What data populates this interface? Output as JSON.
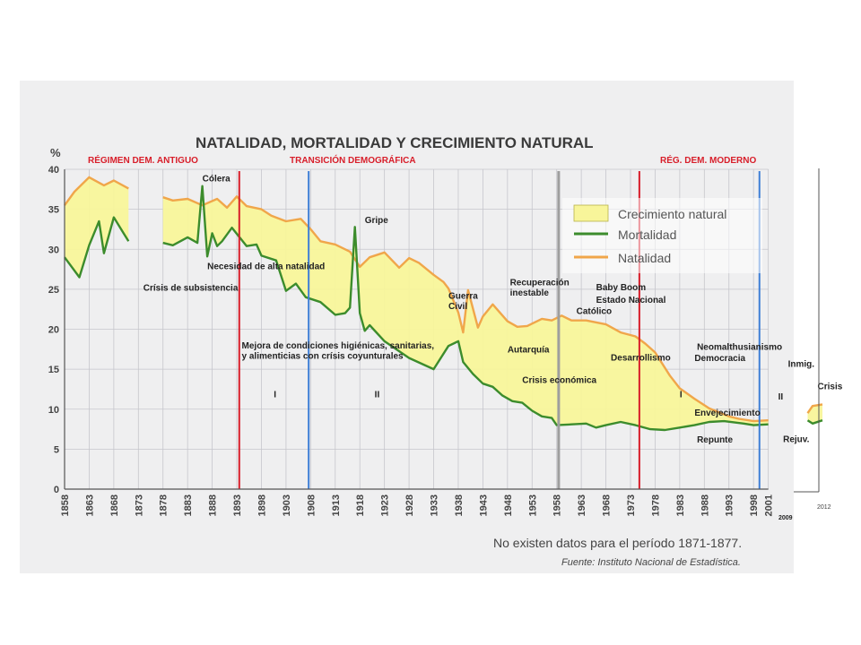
{
  "chart_data": {
    "type": "area",
    "title": "NATALIDAD, MORTALIDAD Y CRECIMIENTO NATURAL",
    "ylabel": "%",
    "xlabel": "",
    "ylim": [
      0,
      40
    ],
    "xlim": [
      1858,
      2012
    ],
    "y_ticks": [
      "0",
      "5",
      "10",
      "15",
      "20",
      "25",
      "30",
      "35",
      "40"
    ],
    "x_ticks": [
      "1858",
      "1863",
      "1868",
      "1873",
      "1878",
      "1883",
      "1888",
      "1893",
      "1898",
      "1903",
      "1908",
      "1913",
      "1918",
      "1923",
      "1928",
      "1933",
      "1938",
      "1943",
      "1948",
      "1953",
      "1958",
      "1963",
      "1968",
      "1973",
      "1978",
      "1983",
      "1988",
      "1993",
      "1998",
      "2001"
    ],
    "grid": true,
    "legend_position": "top-right",
    "legend": [
      "Crecimiento natural",
      "Mortalidad",
      "Natalidad"
    ],
    "colors": {
      "natalidad": "#f0a64a",
      "mortalidad": "#3c8c2c",
      "crecimiento": "#f8f59a",
      "phase_red": "#d81e2a",
      "phase_blue": "#3f7fd6",
      "gap_gray": "#9e9e9e"
    },
    "series": [
      {
        "name": "Natalidad",
        "segments": [
          {
            "x": [
              1858,
              1860,
              1863,
              1866,
              1868,
              1871
            ],
            "y": [
              35.5,
              37.2,
              39.0,
              38.0,
              38.6,
              37.6
            ]
          },
          {
            "x": [
              1878,
              1880,
              1883,
              1886,
              1889,
              1891,
              1893,
              1895,
              1898,
              1900,
              1903,
              1906,
              1908,
              1910,
              1913,
              1916,
              1918,
              1920,
              1923,
              1926,
              1928,
              1930,
              1933,
              1935,
              1936,
              1938,
              1939,
              1940,
              1942,
              1943,
              1945,
              1948,
              1950,
              1952,
              1955,
              1957,
              1959,
              1961,
              1964,
              1968,
              1971,
              1974,
              1976,
              1978,
              1981,
              1983,
              1986,
              1989,
              1991,
              1993,
              1995,
              1998,
              2001
            ]
          },
          {
            "x": [
              2009,
              2010,
              2012
            ],
            "y": [
              9.5,
              10.4,
              10.6
            ]
          }
        ],
        "y": [
          36.5,
          36.1,
          36.3,
          35.5,
          36.3,
          35.2,
          36.6,
          35.4,
          35.0,
          34.2,
          33.5,
          33.8,
          32.5,
          31.0,
          30.6,
          29.7,
          27.8,
          29.0,
          29.6,
          27.7,
          28.9,
          28.3,
          26.8,
          25.9,
          25.1,
          22.1,
          19.6,
          24.9,
          20.2,
          21.6,
          23.1,
          21.0,
          20.3,
          20.4,
          21.3,
          21.1,
          21.7,
          21.1,
          21.1,
          20.6,
          19.6,
          19.1,
          18.2,
          17.1,
          14.2,
          12.6,
          11.3,
          10.1,
          9.6,
          9.1,
          8.8,
          8.5,
          8.6
        ]
      },
      {
        "name": "Mortalidad",
        "segments": [
          {
            "x": [
              1858,
              1861,
              1863,
              1865,
              1866,
              1868,
              1870,
              1871
            ],
            "y": [
              29.0,
              26.5,
              30.5,
              33.5,
              29.5,
              34.0,
              32.0,
              31.0
            ]
          },
          {
            "x": [
              1878,
              1880,
              1883,
              1885,
              1886,
              1887,
              1888,
              1889,
              1890,
              1892,
              1895,
              1897,
              1898,
              1901,
              1903,
              1905,
              1907,
              1910,
              1913,
              1915,
              1916,
              1917,
              1918,
              1919,
              1920,
              1923,
              1928,
              1933,
              1936,
              1938,
              1939,
              1941,
              1943,
              1945,
              1947,
              1949,
              1951,
              1953,
              1955,
              1957,
              1958,
              1961,
              1964,
              1966,
              1968,
              1971,
              1974,
              1977,
              1980,
              1983,
              1986,
              1989,
              1992,
              1996,
              1998,
              2001
            ]
          },
          {
            "x": [
              2009,
              2010,
              2012
            ],
            "y": [
              8.6,
              8.2,
              8.6
            ]
          }
        ],
        "y": [
          30.8,
          30.5,
          31.5,
          30.8,
          37.9,
          29.1,
          32.0,
          30.4,
          31.0,
          32.7,
          30.4,
          30.6,
          29.2,
          28.6,
          24.8,
          25.7,
          24.0,
          23.4,
          21.8,
          22.0,
          22.7,
          32.8,
          22.0,
          19.8,
          20.5,
          18.5,
          16.4,
          15.0,
          17.9,
          18.5,
          15.9,
          14.4,
          13.2,
          12.8,
          11.7,
          11.0,
          10.8,
          9.8,
          9.1,
          8.9,
          8.0,
          8.1,
          8.2,
          7.7,
          8.0,
          8.4,
          8.0,
          7.5,
          7.4,
          7.7,
          8.0,
          8.4,
          8.5,
          8.2,
          8.0,
          8.1
        ]
      }
    ],
    "phases": [
      "RÉGIMEN DEM. ANTIGUO",
      "TRANSICIÓN DEMOGRÁFICA",
      "RÉG. DEM. MODERNO"
    ],
    "phase_lines": [
      {
        "x": 1893.5,
        "color": "phase_red"
      },
      {
        "x": 1907.6,
        "color": "phase_blue"
      },
      {
        "x": 1958.4,
        "color": "gap_gray"
      },
      {
        "x": 1974.8,
        "color": "phase_red"
      },
      {
        "x": 1999.2,
        "color": "phase_blue"
      }
    ],
    "annotations": [
      {
        "text": "Cólera",
        "x": 1886,
        "y": 38.5
      },
      {
        "text": "Gripe",
        "x": 1919,
        "y": 33.3
      },
      {
        "text": "Necesidad de alta natalidad",
        "x": 1887,
        "y": 27.5
      },
      {
        "text": "Crísis de subsistencia",
        "x": 1874,
        "y": 24.8
      },
      {
        "text": "Recuperación",
        "x": 1948.5,
        "y": 25.5
      },
      {
        "text": "inestable",
        "x": 1948.5,
        "y": 24.2
      },
      {
        "text": "Guerra",
        "x": 1936,
        "y": 23.8
      },
      {
        "text": "Civil",
        "x": 1936,
        "y": 22.5
      },
      {
        "text": "Baby Boom",
        "x": 1966,
        "y": 24.9
      },
      {
        "text": "Estado Nacional",
        "x": 1966,
        "y": 23.3
      },
      {
        "text": "Católico",
        "x": 1962,
        "y": 21.9
      },
      {
        "text": "Mejora de condiciones higiénicas, sanitarias,",
        "x": 1894,
        "y": 17.6
      },
      {
        "text": "y alimenticias con crísis coyunturales",
        "x": 1894,
        "y": 16.3
      },
      {
        "text": "Autarquía",
        "x": 1948,
        "y": 17.1
      },
      {
        "text": "Desarrollismo",
        "x": 1969,
        "y": 16.1
      },
      {
        "text": "Neomalthusianismo",
        "x": 1986.5,
        "y": 17.4
      },
      {
        "text": "Democracia",
        "x": 1986,
        "y": 16.0
      },
      {
        "text": "Inmig.",
        "x": 2005,
        "y": 15.3
      },
      {
        "text": "Crisis económica",
        "x": 1951,
        "y": 13.3
      },
      {
        "text": "I",
        "x": 1900.5,
        "y": 11.5
      },
      {
        "text": "II",
        "x": 1921,
        "y": 11.5
      },
      {
        "text": "I",
        "x": 1983,
        "y": 11.5
      },
      {
        "text": "II",
        "x": 2003,
        "y": 11.2
      },
      {
        "text": "Crisis",
        "x": 2011,
        "y": 12.5
      },
      {
        "text": "Envejecimiento",
        "x": 1986,
        "y": 9.2
      },
      {
        "text": "Repunte",
        "x": 1986.5,
        "y": 5.8
      },
      {
        "text": "Rejuv.",
        "x": 2004,
        "y": 5.9
      }
    ],
    "footer_years": [
      "2009",
      "2012"
    ],
    "notes": [
      "No existen datos para el período 1871-1877.",
      "Fuente: Instituto Nacional de Estadística."
    ]
  }
}
